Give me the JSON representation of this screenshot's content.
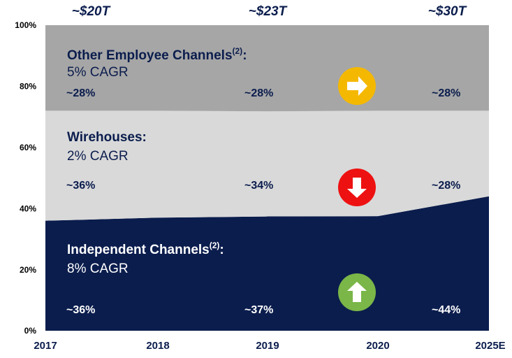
{
  "chart_data": {
    "type": "area",
    "stacked": true,
    "categories": [
      "2017",
      "2018",
      "2019",
      "2020",
      "2025E"
    ],
    "ylim": [
      0,
      100
    ],
    "yticks": [
      {
        "value": 0,
        "label": "0%"
      },
      {
        "value": 20,
        "label": "20%"
      },
      {
        "value": 40,
        "label": "40%"
      },
      {
        "value": 60,
        "label": "60%"
      },
      {
        "value": 80,
        "label": "80%"
      },
      {
        "value": 100,
        "label": "100%"
      }
    ],
    "totals": [
      "~$20T",
      "~$23T",
      "~$30T"
    ],
    "series": [
      {
        "name": "Independent Channels",
        "footnote": "(2)",
        "suffix": ":",
        "cagr": "8% CAGR",
        "color": "#0b1d4d",
        "values": [
          36,
          37,
          37.4,
          37.5,
          44
        ],
        "value_labels": [
          "~36%",
          null,
          "~37%",
          null,
          "~44%"
        ]
      },
      {
        "name": "Wirehouses",
        "suffix": ":",
        "cagr": "2% CAGR",
        "color": "#d9d9d9",
        "values": [
          36,
          35,
          34.4,
          34.5,
          28
        ],
        "value_labels": [
          "~36%",
          null,
          "~34%",
          null,
          "~28%"
        ]
      },
      {
        "name": "Other Employee Channels",
        "footnote": "(2)",
        "suffix": ":",
        "cagr": "5% CAGR",
        "color": "#a6a6a6",
        "values": [
          28,
          28,
          28.2,
          28,
          28
        ],
        "value_labels": [
          "~28%",
          null,
          "~28%",
          null,
          "~28%"
        ]
      }
    ]
  }
}
